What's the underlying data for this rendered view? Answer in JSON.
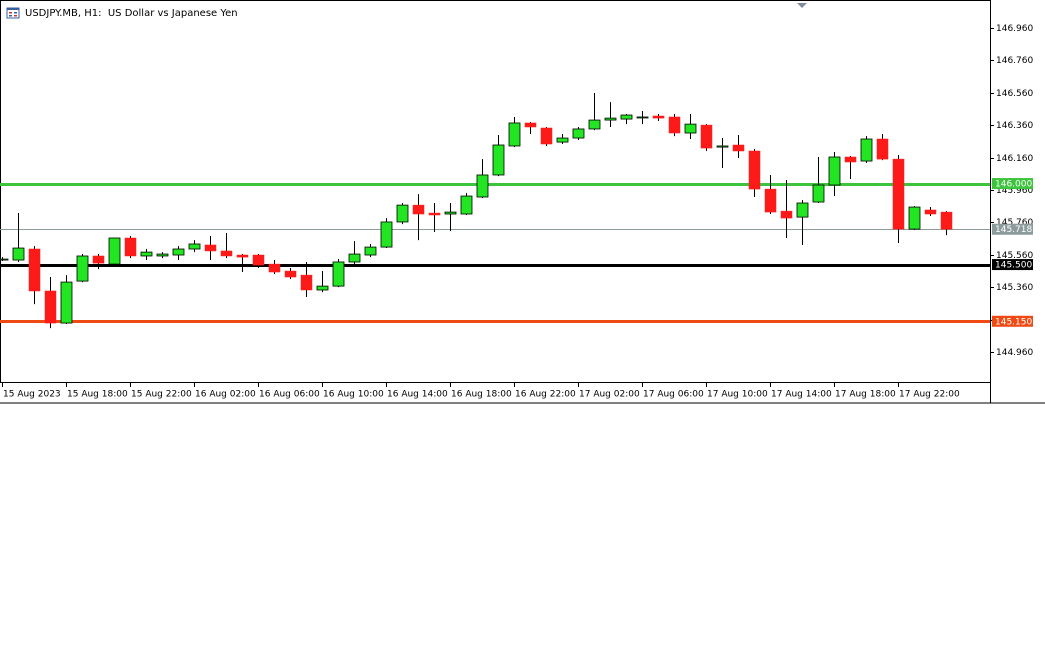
{
  "chart_data": {
    "type": "candlestick",
    "title": "USDJPY.MB, H1:  US Dollar vs Japanese Yen",
    "categories": [
      "15 Aug 2023",
      null,
      null,
      null,
      "15 Aug 18:00",
      null,
      null,
      null,
      "15 Aug 22:00",
      null,
      null,
      null,
      "16 Aug 02:00",
      null,
      null,
      null,
      "16 Aug 06:00",
      null,
      null,
      null,
      "16 Aug 10:00",
      null,
      null,
      null,
      "16 Aug 14:00",
      null,
      null,
      null,
      "16 Aug 18:00",
      null,
      null,
      null,
      "16 Aug 22:00",
      null,
      null,
      null,
      "17 Aug 02:00",
      null,
      null,
      null,
      "17 Aug 06:00",
      null,
      null,
      null,
      "17 Aug 10:00",
      null,
      null,
      null,
      "17 Aug 14:00",
      null,
      null,
      null,
      "17 Aug 18:00",
      null,
      null,
      null,
      "17 Aug 22:00",
      null,
      null,
      null
    ],
    "open": [
      145.534,
      145.528,
      145.596,
      145.337,
      145.139,
      145.398,
      145.553,
      145.503,
      145.664,
      145.553,
      145.553,
      145.559,
      145.596,
      145.621,
      145.584,
      145.559,
      145.559,
      145.503,
      145.46,
      145.435,
      145.343,
      145.367,
      145.516,
      145.559,
      145.608,
      145.763,
      145.867,
      145.818,
      145.812,
      145.812,
      145.917,
      146.053,
      146.232,
      146.374,
      146.343,
      146.256,
      146.281,
      146.337,
      146.392,
      146.398,
      146.411,
      146.417,
      146.411,
      146.312,
      146.361,
      146.225,
      146.238,
      146.201,
      145.966,
      145.83,
      145.793,
      145.886,
      145.991,
      146.164,
      146.139,
      146.275,
      146.151,
      145.719,
      145.837,
      145.824
    ],
    "high": [
      145.546,
      145.818,
      145.614,
      145.423,
      145.435,
      145.565,
      145.565,
      145.664,
      145.676,
      145.596,
      145.577,
      145.614,
      145.651,
      145.676,
      145.695,
      145.565,
      145.565,
      145.528,
      145.479,
      145.516,
      145.46,
      145.534,
      145.645,
      145.627,
      145.787,
      145.88,
      145.935,
      145.88,
      145.88,
      145.942,
      146.151,
      146.3,
      146.411,
      146.38,
      146.349,
      146.306,
      146.349,
      146.559,
      146.503,
      146.429,
      146.448,
      146.429,
      146.429,
      146.429,
      146.367,
      146.281,
      146.3,
      146.213,
      146.053,
      146.022,
      145.898,
      146.164,
      146.195,
      146.17,
      146.293,
      146.306,
      146.176,
      145.861,
      145.855,
      145.83
    ],
    "low": [
      145.522,
      145.516,
      145.256,
      145.108,
      145.133,
      145.392,
      145.472,
      145.497,
      145.54,
      145.528,
      145.54,
      145.528,
      145.577,
      145.528,
      145.54,
      145.454,
      145.479,
      145.442,
      145.411,
      145.3,
      145.33,
      145.361,
      145.503,
      145.546,
      145.602,
      145.75,
      145.651,
      145.701,
      145.707,
      145.806,
      145.911,
      146.046,
      146.225,
      146.306,
      146.232,
      146.244,
      146.269,
      146.33,
      146.349,
      146.367,
      146.367,
      146.386,
      146.293,
      146.275,
      146.201,
      146.096,
      146.158,
      145.917,
      145.812,
      145.664,
      145.621,
      145.88,
      145.923,
      146.028,
      146.127,
      146.145,
      145.633,
      145.713,
      145.8,
      145.682
    ],
    "close": [
      145.534,
      145.602,
      145.337,
      145.139,
      145.392,
      145.553,
      145.509,
      145.664,
      145.553,
      145.577,
      145.565,
      145.596,
      145.627,
      145.584,
      145.553,
      145.546,
      145.497,
      145.454,
      145.423,
      145.343,
      145.367,
      145.516,
      145.565,
      145.608,
      145.763,
      145.867,
      145.812,
      145.806,
      145.824,
      145.923,
      146.053,
      146.238,
      146.374,
      146.349,
      146.244,
      146.281,
      146.337,
      146.392,
      146.404,
      146.423,
      146.411,
      146.404,
      146.312,
      146.367,
      146.219,
      146.232,
      146.201,
      145.966,
      145.824,
      145.787,
      145.88,
      145.991,
      146.164,
      146.133,
      146.275,
      146.151,
      145.719,
      145.855,
      145.812,
      145.718
    ],
    "up_color": "#22e622",
    "down_color": "#ff1a1a",
    "ylim": [
      144.769,
      147.133
    ],
    "yticks": [
      {
        "value": 146.96,
        "label": "146.960"
      },
      {
        "value": 146.76,
        "label": "146.760"
      },
      {
        "value": 146.56,
        "label": "146.560"
      },
      {
        "value": 146.36,
        "label": "146.360"
      },
      {
        "value": 146.16,
        "label": "146.160"
      },
      {
        "value": 145.96,
        "label": "145.960"
      },
      {
        "value": 145.76,
        "label": "145.760"
      },
      {
        "value": 145.56,
        "label": "145.560"
      },
      {
        "value": 145.36,
        "label": "145.360"
      },
      {
        "value": 145.16,
        "label": "145.160"
      },
      {
        "value": 144.96,
        "label": "144.960"
      }
    ],
    "levels": [
      {
        "value": 146.0,
        "label": "146.000",
        "color": "#3cc43c"
      },
      {
        "value": 145.5,
        "label": "145.500",
        "color": "#000000"
      },
      {
        "value": 145.15,
        "label": "145.150",
        "color": "#f04a14"
      }
    ],
    "current_price": {
      "value": 145.718,
      "label": "145.718",
      "color": "#8c9c9c"
    }
  }
}
